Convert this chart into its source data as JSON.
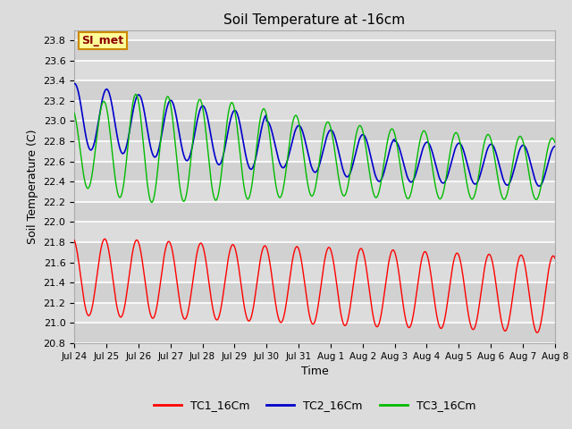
{
  "title": "Soil Temperature at -16cm",
  "xlabel": "Time",
  "ylabel": "Soil Temperature (C)",
  "ylim": [
    20.8,
    23.9
  ],
  "background_color": "#dcdcdc",
  "plot_bg_color": "#dcdcdc",
  "grid_color": "white",
  "series": [
    {
      "name": "TC1_16Cm",
      "color": "#ff0000"
    },
    {
      "name": "TC2_16Cm",
      "color": "#0000cc"
    },
    {
      "name": "TC3_16Cm",
      "color": "#00bb00"
    }
  ],
  "xtick_labels": [
    "Jul 24",
    "Jul 25",
    "Jul 26",
    "Jul 27",
    "Jul 28",
    "Jul 29",
    "Jul 30",
    "Jul 31",
    "Aug 1",
    "Aug 2",
    "Aug 3",
    "Aug 4",
    "Aug 5",
    "Aug 6",
    "Aug 7",
    "Aug 8"
  ],
  "legend_label": "SI_met",
  "legend_bg": "#ffff99",
  "legend_border": "#cc8800",
  "legend_text_color": "#8b0000"
}
